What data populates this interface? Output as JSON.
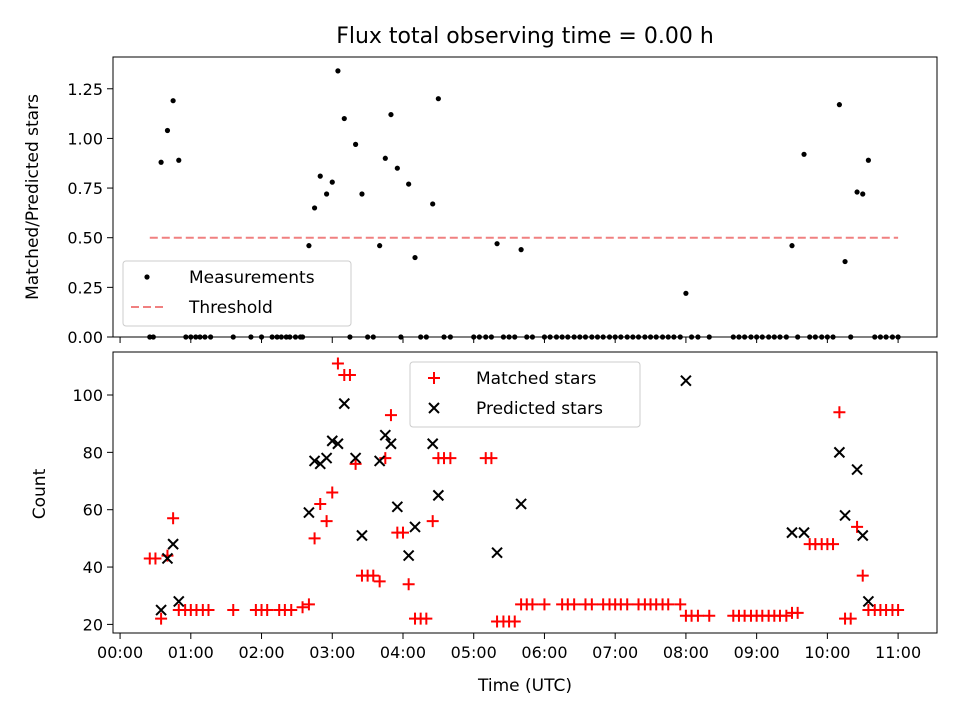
{
  "chart_data": [
    {
      "type": "scatter",
      "title": "Flux total observing time = 0.00 h",
      "xlabel": "",
      "ylabel": "Matched/Predicted stars",
      "xlim": [
        -0.1,
        11.55
      ],
      "ylim": [
        0,
        1.41
      ],
      "yticks": [
        0.0,
        0.25,
        0.5,
        0.75,
        1.0,
        1.25
      ],
      "ytick_labels": [
        "0.00",
        "0.25",
        "0.50",
        "0.75",
        "1.00",
        "1.25"
      ],
      "xticks": [
        0,
        1,
        2,
        3,
        4,
        5,
        6,
        7,
        8,
        9,
        10,
        11
      ],
      "legend": [
        "Measurements",
        "Threshold"
      ],
      "legend_loc": "lower left",
      "series": [
        {
          "name": "Measurements",
          "color": "#000000",
          "marker": "dot",
          "points": [
            [
              0.42,
              0
            ],
            [
              0.47,
              0
            ],
            [
              0.58,
              0.88
            ],
            [
              0.67,
              1.04
            ],
            [
              0.75,
              1.19
            ],
            [
              0.83,
              0.89
            ],
            [
              0.93,
              0
            ],
            [
              1.0,
              0
            ],
            [
              1.07,
              0
            ],
            [
              1.13,
              0
            ],
            [
              1.2,
              0
            ],
            [
              1.28,
              0
            ],
            [
              1.6,
              0
            ],
            [
              1.85,
              0
            ],
            [
              2.0,
              0
            ],
            [
              2.15,
              0
            ],
            [
              2.22,
              0
            ],
            [
              2.28,
              0
            ],
            [
              2.35,
              0
            ],
            [
              2.4,
              0
            ],
            [
              2.48,
              0
            ],
            [
              2.55,
              0
            ],
            [
              2.58,
              0
            ],
            [
              2.67,
              0.46
            ],
            [
              2.75,
              0.65
            ],
            [
              2.83,
              0.81
            ],
            [
              2.92,
              0.72
            ],
            [
              3.0,
              0.78
            ],
            [
              3.08,
              1.34
            ],
            [
              3.17,
              1.1
            ],
            [
              3.25,
              0
            ],
            [
              3.33,
              0.97
            ],
            [
              3.42,
              0.72
            ],
            [
              3.5,
              0
            ],
            [
              3.58,
              0
            ],
            [
              3.67,
              0.46
            ],
            [
              3.75,
              0.9
            ],
            [
              3.83,
              1.12
            ],
            [
              3.92,
              0.85
            ],
            [
              3.97,
              0
            ],
            [
              4.08,
              0.77
            ],
            [
              4.17,
              0.4
            ],
            [
              4.25,
              0
            ],
            [
              4.33,
              0
            ],
            [
              4.42,
              0.67
            ],
            [
              4.5,
              1.2
            ],
            [
              4.58,
              0
            ],
            [
              4.67,
              0
            ],
            [
              5.0,
              0
            ],
            [
              5.08,
              0
            ],
            [
              5.17,
              0
            ],
            [
              5.25,
              0
            ],
            [
              5.33,
              0.47
            ],
            [
              5.42,
              0
            ],
            [
              5.5,
              0
            ],
            [
              5.58,
              0
            ],
            [
              5.67,
              0.44
            ],
            [
              5.75,
              0
            ],
            [
              5.83,
              0
            ],
            [
              6.0,
              0
            ],
            [
              6.08,
              0
            ],
            [
              6.17,
              0
            ],
            [
              6.25,
              0
            ],
            [
              6.33,
              0
            ],
            [
              6.42,
              0
            ],
            [
              6.5,
              0
            ],
            [
              6.58,
              0
            ],
            [
              6.67,
              0
            ],
            [
              6.75,
              0
            ],
            [
              6.83,
              0
            ],
            [
              6.92,
              0
            ],
            [
              7.0,
              0
            ],
            [
              7.08,
              0
            ],
            [
              7.17,
              0
            ],
            [
              7.25,
              0
            ],
            [
              7.33,
              0
            ],
            [
              7.42,
              0
            ],
            [
              7.5,
              0
            ],
            [
              7.58,
              0
            ],
            [
              7.67,
              0
            ],
            [
              7.75,
              0
            ],
            [
              7.83,
              0
            ],
            [
              7.92,
              0
            ],
            [
              8.0,
              0.22
            ],
            [
              8.08,
              0
            ],
            [
              8.17,
              0
            ],
            [
              8.33,
              0
            ],
            [
              8.67,
              0
            ],
            [
              8.75,
              0
            ],
            [
              8.83,
              0
            ],
            [
              8.92,
              0
            ],
            [
              9.0,
              0
            ],
            [
              9.08,
              0
            ],
            [
              9.17,
              0
            ],
            [
              9.25,
              0
            ],
            [
              9.33,
              0
            ],
            [
              9.42,
              0
            ],
            [
              9.5,
              0.46
            ],
            [
              9.58,
              0
            ],
            [
              9.67,
              0.92
            ],
            [
              9.75,
              0
            ],
            [
              9.83,
              0
            ],
            [
              9.92,
              0
            ],
            [
              10.0,
              0
            ],
            [
              10.08,
              0
            ],
            [
              10.17,
              1.17
            ],
            [
              10.25,
              0.38
            ],
            [
              10.33,
              0
            ],
            [
              10.42,
              0.73
            ],
            [
              10.5,
              0.72
            ],
            [
              10.58,
              0.89
            ],
            [
              10.67,
              0
            ],
            [
              10.75,
              0
            ],
            [
              10.83,
              0
            ],
            [
              10.92,
              0
            ],
            [
              11.0,
              0
            ]
          ]
        },
        {
          "name": "Threshold",
          "color": "#f08080",
          "style": "dashed",
          "points": [
            [
              0.42,
              0.5
            ],
            [
              11.0,
              0.5
            ]
          ]
        }
      ]
    },
    {
      "type": "scatter",
      "title": "",
      "xlabel": "Time (UTC)",
      "ylabel": "Count",
      "xlim": [
        -0.1,
        11.55
      ],
      "ylim": [
        17,
        115
      ],
      "yticks": [
        20,
        40,
        60,
        80,
        100
      ],
      "ytick_labels": [
        "20",
        "40",
        "60",
        "80",
        "100"
      ],
      "xticks": [
        0,
        1,
        2,
        3,
        4,
        5,
        6,
        7,
        8,
        9,
        10,
        11
      ],
      "xtick_labels": [
        "00:00",
        "01:00",
        "02:00",
        "03:00",
        "04:00",
        "05:00",
        "06:00",
        "07:00",
        "08:00",
        "09:00",
        "10:00",
        "11:00"
      ],
      "legend": [
        "Matched stars",
        "Predicted stars"
      ],
      "legend_loc": "upper center",
      "series": [
        {
          "name": "Matched stars",
          "color": "#ff0000",
          "marker": "plus",
          "points": [
            [
              0.42,
              43
            ],
            [
              0.5,
              43
            ],
            [
              0.58,
              22
            ],
            [
              0.67,
              44
            ],
            [
              0.75,
              57
            ],
            [
              0.83,
              25
            ],
            [
              0.92,
              25
            ],
            [
              1.0,
              25
            ],
            [
              1.08,
              25
            ],
            [
              1.17,
              25
            ],
            [
              1.25,
              25
            ],
            [
              1.6,
              25
            ],
            [
              1.92,
              25
            ],
            [
              2.0,
              25
            ],
            [
              2.08,
              25
            ],
            [
              2.25,
              25
            ],
            [
              2.33,
              25
            ],
            [
              2.42,
              25
            ],
            [
              2.58,
              26
            ],
            [
              2.67,
              27
            ],
            [
              2.75,
              50
            ],
            [
              2.83,
              62
            ],
            [
              2.92,
              56
            ],
            [
              3.0,
              66
            ],
            [
              3.08,
              111
            ],
            [
              3.17,
              107
            ],
            [
              3.25,
              107
            ],
            [
              3.33,
              76
            ],
            [
              3.42,
              37
            ],
            [
              3.5,
              37
            ],
            [
              3.58,
              37
            ],
            [
              3.67,
              35
            ],
            [
              3.75,
              78
            ],
            [
              3.83,
              93
            ],
            [
              3.92,
              52
            ],
            [
              4.0,
              52
            ],
            [
              4.08,
              34
            ],
            [
              4.17,
              22
            ],
            [
              4.25,
              22
            ],
            [
              4.33,
              22
            ],
            [
              4.42,
              56
            ],
            [
              4.5,
              78
            ],
            [
              4.58,
              78
            ],
            [
              4.67,
              78
            ],
            [
              5.17,
              78
            ],
            [
              5.25,
              78
            ],
            [
              5.33,
              21
            ],
            [
              5.42,
              21
            ],
            [
              5.5,
              21
            ],
            [
              5.58,
              21
            ],
            [
              5.67,
              27
            ],
            [
              5.75,
              27
            ],
            [
              5.83,
              27
            ],
            [
              6.0,
              27
            ],
            [
              6.25,
              27
            ],
            [
              6.33,
              27
            ],
            [
              6.42,
              27
            ],
            [
              6.58,
              27
            ],
            [
              6.67,
              27
            ],
            [
              6.83,
              27
            ],
            [
              6.92,
              27
            ],
            [
              7.0,
              27
            ],
            [
              7.08,
              27
            ],
            [
              7.17,
              27
            ],
            [
              7.33,
              27
            ],
            [
              7.42,
              27
            ],
            [
              7.5,
              27
            ],
            [
              7.58,
              27
            ],
            [
              7.67,
              27
            ],
            [
              7.75,
              27
            ],
            [
              7.92,
              27
            ],
            [
              8.0,
              23
            ],
            [
              8.08,
              23
            ],
            [
              8.17,
              23
            ],
            [
              8.33,
              23
            ],
            [
              8.67,
              23
            ],
            [
              8.75,
              23
            ],
            [
              8.83,
              23
            ],
            [
              8.92,
              23
            ],
            [
              9.0,
              23
            ],
            [
              9.08,
              23
            ],
            [
              9.17,
              23
            ],
            [
              9.25,
              23
            ],
            [
              9.33,
              23
            ],
            [
              9.42,
              23
            ],
            [
              9.5,
              24
            ],
            [
              9.58,
              24
            ],
            [
              9.75,
              48
            ],
            [
              9.83,
              48
            ],
            [
              9.92,
              48
            ],
            [
              10.0,
              48
            ],
            [
              10.08,
              48
            ],
            [
              10.17,
              94
            ],
            [
              10.25,
              22
            ],
            [
              10.33,
              22
            ],
            [
              10.42,
              54
            ],
            [
              10.5,
              37
            ],
            [
              10.58,
              25
            ],
            [
              10.67,
              25
            ],
            [
              10.75,
              25
            ],
            [
              10.83,
              25
            ],
            [
              10.92,
              25
            ],
            [
              11.0,
              25
            ]
          ]
        },
        {
          "name": "Predicted stars",
          "color": "#000000",
          "marker": "x",
          "points": [
            [
              0.58,
              25
            ],
            [
              0.67,
              43
            ],
            [
              0.75,
              48
            ],
            [
              0.83,
              28
            ],
            [
              2.67,
              59
            ],
            [
              2.75,
              77
            ],
            [
              2.83,
              76
            ],
            [
              2.92,
              78
            ],
            [
              3.0,
              84
            ],
            [
              3.08,
              83
            ],
            [
              3.17,
              97
            ],
            [
              3.33,
              78
            ],
            [
              3.42,
              51
            ],
            [
              3.67,
              77
            ],
            [
              3.75,
              86
            ],
            [
              3.83,
              83
            ],
            [
              3.92,
              61
            ],
            [
              4.08,
              44
            ],
            [
              4.17,
              54
            ],
            [
              4.42,
              83
            ],
            [
              4.5,
              65
            ],
            [
              5.33,
              45
            ],
            [
              5.67,
              62
            ],
            [
              8.0,
              105
            ],
            [
              9.5,
              52
            ],
            [
              9.67,
              52
            ],
            [
              10.17,
              80
            ],
            [
              10.25,
              58
            ],
            [
              10.42,
              74
            ],
            [
              10.5,
              51
            ],
            [
              10.58,
              28
            ]
          ]
        }
      ]
    }
  ]
}
